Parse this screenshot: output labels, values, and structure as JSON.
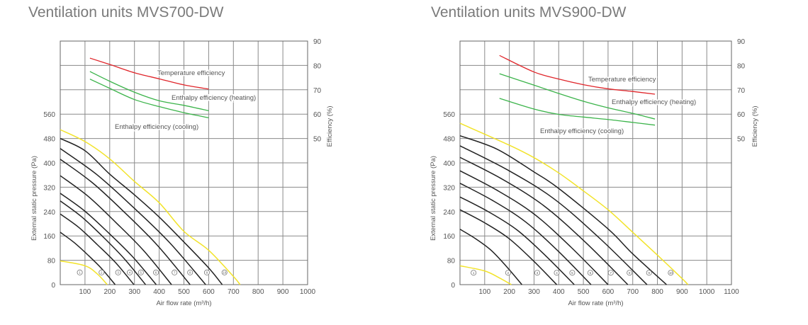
{
  "chart_data": [
    {
      "type": "line",
      "title": "Ventilation units MVS700-DW",
      "xlabel": "Air flow rate (m³/h)",
      "ylabel": "External static pressure (Pa)",
      "y2label": "Efficiency (%)",
      "xlim": [
        0,
        1000
      ],
      "ylim": [
        0,
        800
      ],
      "y2lim": [
        50,
        90
      ],
      "xticks": [
        100,
        200,
        300,
        400,
        500,
        600,
        700,
        800,
        900,
        1000
      ],
      "yticks": [
        0,
        80,
        160,
        240,
        320,
        400,
        480,
        560
      ],
      "y2ticks": [
        50,
        60,
        70,
        80,
        90
      ],
      "grid": true,
      "colors": {
        "fan_curve": "#222222",
        "limit_curve": "#f2e32a",
        "temperature": "#e0262b",
        "enthalpy": "#3cb44b"
      },
      "fan_curves": [
        {
          "label": "1",
          "kind": "limit",
          "points": [
            [
              0,
              78
            ],
            [
              100,
              62
            ],
            [
              150,
              35
            ],
            [
              190,
              0
            ]
          ]
        },
        {
          "label": "2",
          "kind": "fan",
          "points": [
            [
              0,
              172
            ],
            [
              55,
              139
            ],
            [
              111,
              98
            ],
            [
              167,
              53
            ],
            [
              222,
              0
            ]
          ]
        },
        {
          "label": "3",
          "kind": "fan",
          "points": [
            [
              0,
              232
            ],
            [
              75,
              188
            ],
            [
              149,
              132
            ],
            [
              224,
              72
            ],
            [
              298,
              0
            ]
          ]
        },
        {
          "label": "4",
          "kind": "fan",
          "points": [
            [
              0,
              275
            ],
            [
              86,
              223
            ],
            [
              173,
              157
            ],
            [
              259,
              85
            ],
            [
              345,
              0
            ]
          ]
        },
        {
          "label": "5",
          "kind": "fan",
          "points": [
            [
              0,
              300
            ],
            [
              97,
              243
            ],
            [
              194,
              171
            ],
            [
              291,
              93
            ],
            [
              388,
              0
            ]
          ]
        },
        {
          "label": "6",
          "kind": "fan",
          "points": [
            [
              0,
              358
            ],
            [
              113,
              290
            ],
            [
              225,
              204
            ],
            [
              338,
              111
            ],
            [
              450,
              0
            ]
          ]
        },
        {
          "label": "7",
          "kind": "fan",
          "points": [
            [
              0,
              412
            ],
            [
              131,
              334
            ],
            [
              263,
              235
            ],
            [
              394,
              128
            ],
            [
              525,
              0
            ]
          ]
        },
        {
          "label": "8",
          "kind": "fan",
          "points": [
            [
              0,
              447
            ],
            [
              147,
              362
            ],
            [
              294,
              255
            ],
            [
              441,
              139
            ],
            [
              588,
              0
            ]
          ]
        },
        {
          "label": "9",
          "kind": "fan",
          "points": [
            [
              0,
              480
            ],
            [
              100,
              440
            ],
            [
              200,
              363
            ],
            [
              300,
              295
            ],
            [
              400,
              222
            ],
            [
              500,
              140
            ],
            [
              600,
              55
            ],
            [
              655,
              0
            ]
          ]
        },
        {
          "label": "10",
          "kind": "limit",
          "points": [
            [
              0,
              509
            ],
            [
              100,
              470
            ],
            [
              200,
              413
            ],
            [
              300,
              339
            ],
            [
              400,
              269
            ],
            [
              500,
              175
            ],
            [
              600,
              113
            ],
            [
              700,
              27
            ],
            [
              727,
              0
            ]
          ]
        }
      ],
      "curve_label_markers": [
        [
          79,
          40
        ],
        [
          167,
          40
        ],
        [
          234,
          40
        ],
        [
          281,
          40
        ],
        [
          326,
          40
        ],
        [
          387,
          40
        ],
        [
          462,
          40
        ],
        [
          525,
          40
        ],
        [
          593,
          40
        ],
        [
          664,
          40
        ]
      ],
      "efficiency_curves": [
        {
          "name": "Temperature efficiency",
          "color": "#e0262b",
          "points": [
            [
              120,
              83
            ],
            [
              200,
              80.4
            ],
            [
              300,
              77
            ],
            [
              400,
              74.5
            ],
            [
              500,
              72
            ],
            [
              600,
              70.3
            ]
          ]
        },
        {
          "name": "Enthalpy efficiency (heating)",
          "color": "#3cb44b",
          "points": [
            [
              120,
              77.5
            ],
            [
              200,
              73.5
            ],
            [
              300,
              69
            ],
            [
              400,
              65.5
            ],
            [
              500,
              63.6
            ],
            [
              600,
              61.4
            ]
          ]
        },
        {
          "name": "Enthalpy efficiency (cooling)",
          "color": "#3cb44b",
          "points": [
            [
              120,
              74.4
            ],
            [
              200,
              70.6
            ],
            [
              300,
              66
            ],
            [
              400,
              63.1
            ],
            [
              500,
              60.6
            ],
            [
              600,
              58.5
            ]
          ]
        }
      ]
    },
    {
      "type": "line",
      "title": "Ventilation units MVS900-DW",
      "xlabel": "Air flow rate (m³/h)",
      "ylabel": "External static pressure (Pa)",
      "y2label": "Efficiency (%)",
      "xlim": [
        0,
        1100
      ],
      "ylim": [
        0,
        800
      ],
      "y2lim": [
        50,
        90
      ],
      "xticks": [
        100,
        200,
        300,
        400,
        500,
        600,
        700,
        800,
        900,
        1000,
        1100
      ],
      "yticks": [
        0,
        80,
        160,
        240,
        320,
        400,
        480,
        560
      ],
      "y2ticks": [
        50,
        60,
        70,
        80,
        90
      ],
      "grid": true,
      "colors": {
        "fan_curve": "#222222",
        "limit_curve": "#f2e32a",
        "temperature": "#e0262b",
        "enthalpy": "#3cb44b"
      },
      "fan_curves": [
        {
          "label": "1",
          "kind": "limit",
          "points": [
            [
              0,
              62
            ],
            [
              100,
              45
            ],
            [
              160,
              22
            ],
            [
              208,
              0
            ]
          ]
        },
        {
          "label": "2",
          "kind": "fan",
          "points": [
            [
              0,
              182
            ],
            [
              63,
              151
            ],
            [
              126,
              113
            ],
            [
              188,
              60
            ],
            [
              251,
              0
            ]
          ]
        },
        {
          "label": "3",
          "kind": "fan",
          "points": [
            [
              0,
              246
            ],
            [
              98,
              204
            ],
            [
              196,
              153
            ],
            [
              294,
              81
            ],
            [
              392,
              0
            ]
          ]
        },
        {
          "label": "4",
          "kind": "fan",
          "points": [
            [
              0,
              288
            ],
            [
              116,
              239
            ],
            [
              232,
              179
            ],
            [
              347,
              95
            ],
            [
              463,
              0
            ]
          ]
        },
        {
          "label": "5",
          "kind": "fan",
          "points": [
            [
              0,
              333
            ],
            [
              133,
              276
            ],
            [
              266,
              206
            ],
            [
              398,
              110
            ],
            [
              531,
              0
            ]
          ]
        },
        {
          "label": "6",
          "kind": "fan",
          "points": [
            [
              0,
              374
            ],
            [
              150,
              310
            ],
            [
              300,
              232
            ],
            [
              450,
              123
            ],
            [
              600,
              0
            ]
          ]
        },
        {
          "label": "7",
          "kind": "fan",
          "points": [
            [
              0,
              418
            ],
            [
              170,
              347
            ],
            [
              340,
              259
            ],
            [
              510,
              138
            ],
            [
              680,
              0
            ]
          ]
        },
        {
          "label": "8",
          "kind": "fan",
          "points": [
            [
              0,
              456
            ],
            [
              190,
              378
            ],
            [
              379,
              283
            ],
            [
              569,
              150
            ],
            [
              758,
              0
            ]
          ]
        },
        {
          "label": "9",
          "kind": "fan",
          "points": [
            [
              0,
              489
            ],
            [
              150,
              445
            ],
            [
              300,
              370
            ],
            [
              400,
              316
            ],
            [
              600,
              183
            ],
            [
              700,
              101
            ],
            [
              837,
              0
            ]
          ]
        },
        {
          "label": "10",
          "kind": "limit",
          "points": [
            [
              0,
              530
            ],
            [
              200,
              458
            ],
            [
              300,
              417
            ],
            [
              400,
              367
            ],
            [
              500,
              308
            ],
            [
              600,
              246
            ],
            [
              700,
              172
            ],
            [
              800,
              97
            ],
            [
              900,
              20
            ],
            [
              924,
              0
            ]
          ]
        }
      ],
      "curve_label_markers": [
        [
          55,
          39
        ],
        [
          195,
          39
        ],
        [
          313,
          39
        ],
        [
          392,
          39
        ],
        [
          455,
          39
        ],
        [
          528,
          39
        ],
        [
          611,
          39
        ],
        [
          687,
          39
        ],
        [
          766,
          39
        ],
        [
          854,
          39
        ]
      ],
      "efficiency_curves": [
        {
          "name": "Temperature efficiency",
          "color": "#e0262b",
          "points": [
            [
              160,
              84.1
            ],
            [
              300,
              77.3
            ],
            [
              400,
              74.4
            ],
            [
              500,
              72.1
            ],
            [
              600,
              70.4
            ],
            [
              700,
              69.3
            ],
            [
              790,
              68.2
            ]
          ]
        },
        {
          "name": "Enthalpy efficiency (heating)",
          "color": "#3cb44b",
          "points": [
            [
              160,
              76.6
            ],
            [
              300,
              71.9
            ],
            [
              400,
              68.5
            ],
            [
              500,
              65.3
            ],
            [
              600,
              62.6
            ],
            [
              700,
              60.3
            ],
            [
              790,
              58
            ]
          ]
        },
        {
          "name": "Enthalpy efficiency (cooling)",
          "color": "#3cb44b",
          "points": [
            [
              160,
              66.5
            ],
            [
              300,
              62.1
            ],
            [
              400,
              59.9
            ],
            [
              500,
              58.8
            ],
            [
              600,
              57.8
            ],
            [
              700,
              56.6
            ],
            [
              790,
              55.5
            ]
          ]
        }
      ]
    }
  ]
}
